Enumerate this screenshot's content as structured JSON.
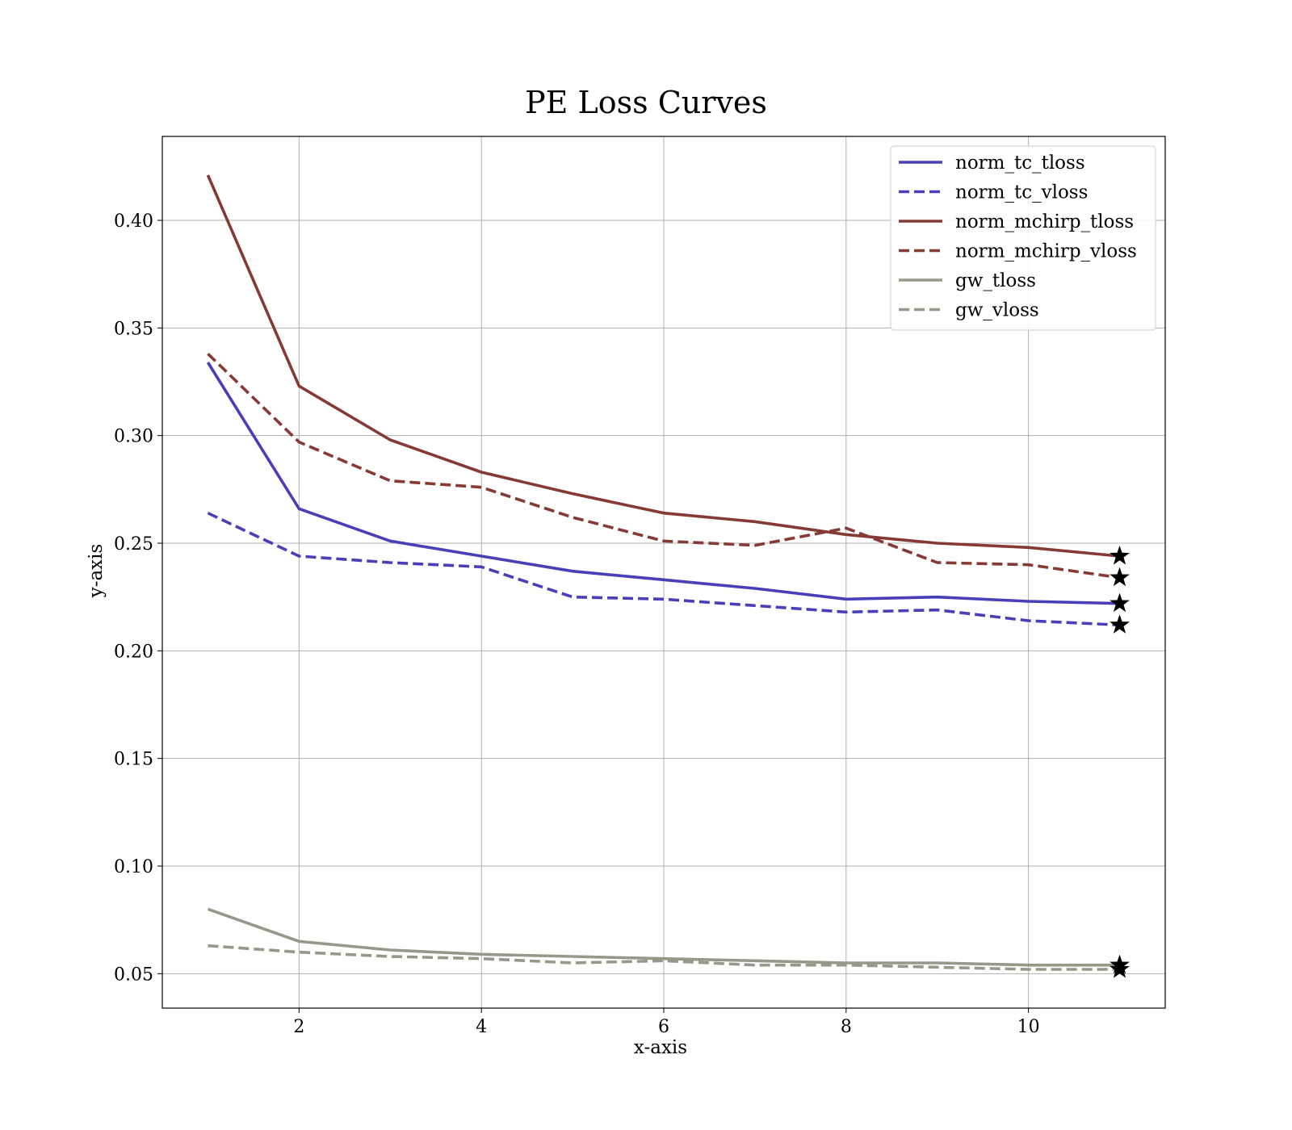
{
  "chart_data": {
    "type": "line",
    "title": "PE Loss Curves",
    "xlabel": "x-axis",
    "ylabel": "y-axis",
    "xlim": [
      0.5,
      11.5
    ],
    "ylim": [
      0.034,
      0.439
    ],
    "xticks": [
      2,
      4,
      6,
      8,
      10
    ],
    "yticks": [
      0.05,
      0.1,
      0.15,
      0.2,
      0.25,
      0.3,
      0.35,
      0.4
    ],
    "grid": true,
    "legend_position": "top-right",
    "x": [
      1,
      2,
      3,
      4,
      5,
      6,
      7,
      8,
      9,
      10,
      11
    ],
    "series": [
      {
        "name": "norm_tc_tloss",
        "color": "#4a3fb8",
        "dashed": false,
        "values": [
          0.334,
          0.266,
          0.251,
          0.244,
          0.237,
          0.233,
          0.229,
          0.224,
          0.225,
          0.223,
          0.222
        ]
      },
      {
        "name": "norm_tc_vloss",
        "color": "#4a3fb8",
        "dashed": true,
        "values": [
          0.264,
          0.244,
          0.241,
          0.239,
          0.225,
          0.224,
          0.221,
          0.218,
          0.219,
          0.214,
          0.212
        ]
      },
      {
        "name": "norm_mchirp_tloss",
        "color": "#853a36",
        "dashed": false,
        "values": [
          0.421,
          0.323,
          0.298,
          0.283,
          0.273,
          0.264,
          0.26,
          0.254,
          0.25,
          0.248,
          0.244
        ]
      },
      {
        "name": "norm_mchirp_vloss",
        "color": "#853a36",
        "dashed": true,
        "values": [
          0.338,
          0.297,
          0.279,
          0.276,
          0.262,
          0.251,
          0.249,
          0.257,
          0.241,
          0.24,
          0.234
        ]
      },
      {
        "name": "gw_tloss",
        "color": "#97978a",
        "dashed": false,
        "values": [
          0.08,
          0.065,
          0.061,
          0.059,
          0.058,
          0.057,
          0.056,
          0.055,
          0.055,
          0.054,
          0.054
        ]
      },
      {
        "name": "gw_vloss",
        "color": "#97978a",
        "dashed": true,
        "values": [
          0.063,
          0.06,
          0.058,
          0.057,
          0.055,
          0.056,
          0.054,
          0.054,
          0.053,
          0.052,
          0.052
        ]
      }
    ],
    "final_point_marker": "star"
  }
}
